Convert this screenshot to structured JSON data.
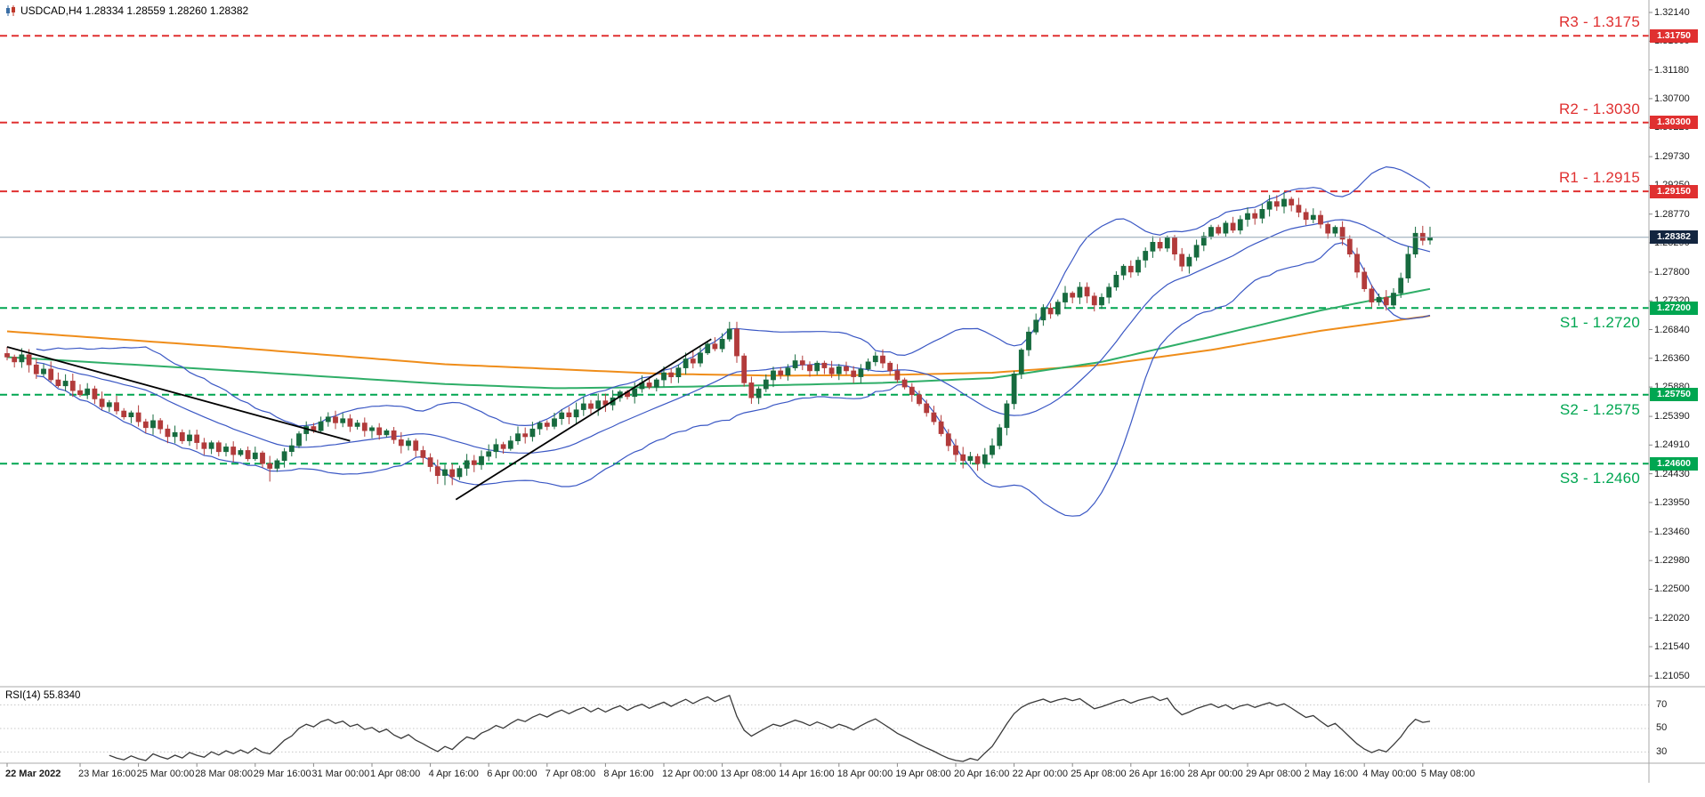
{
  "header": {
    "symbol_info": "USDCAD,H4 1.28334 1.28559 1.28260 1.28382"
  },
  "rsi_panel": {
    "label": "RSI(14) 55.8340",
    "level_labels": [
      "70",
      "50",
      "30"
    ]
  },
  "colors": {
    "background": "#ffffff",
    "resistance": "#e03030",
    "support": "#00a651",
    "current_price_line": "#90a4b4",
    "current_price_tag_bg": "#13253f",
    "up_candle": "#176b3f",
    "down_candle": "#b23b3b",
    "bollinger": "#3a57c4",
    "ma_orange": "#ef8d1a",
    "ma_green": "#2fae68",
    "trendline": "#000000",
    "rsi_line": "#3a3a3a",
    "separator": "#a8a8a8",
    "axis_text": "#1b1b1b"
  },
  "chart_data": {
    "type": "candlestick",
    "symbol": "USDCAD",
    "timeframe": "H4",
    "ohlc": {
      "open": 1.28334,
      "high": 1.28559,
      "low": 1.2826,
      "close": 1.28382
    },
    "price_axis": {
      "max": 1.3214,
      "min": 1.2105,
      "labels": [
        "1.32140",
        "1.31660",
        "1.31180",
        "1.30700",
        "1.30220",
        "1.29730",
        "1.29250",
        "1.28770",
        "1.28290",
        "1.27800",
        "1.27320",
        "1.26840",
        "1.26360",
        "1.25880",
        "1.25390",
        "1.24910",
        "1.24430",
        "1.23950",
        "1.23460",
        "1.22980",
        "1.22500",
        "1.22020",
        "1.21540",
        "1.21050"
      ]
    },
    "time_axis": {
      "labels": [
        "22 Mar 2022",
        "23 Mar 16:00",
        "25 Mar 00:00",
        "28 Mar 08:00",
        "29 Mar 16:00",
        "31 Mar 00:00",
        "1 Apr 08:00",
        "4 Apr 16:00",
        "6 Apr 00:00",
        "7 Apr 08:00",
        "8 Apr 16:00",
        "12 Apr 00:00",
        "13 Apr 08:00",
        "14 Apr 16:00",
        "18 Apr 00:00",
        "19 Apr 08:00",
        "20 Apr 16:00",
        "22 Apr 00:00",
        "25 Apr 08:00",
        "26 Apr 16:00",
        "28 Apr 00:00",
        "29 Apr 08:00",
        "2 May 16:00",
        "4 May 00:00",
        "5 May 08:00"
      ],
      "bars": [
        0,
        10,
        18,
        26,
        34,
        42,
        50,
        58,
        66,
        74,
        82,
        90,
        98,
        106,
        114,
        122,
        130,
        138,
        146,
        154,
        162,
        170,
        178,
        186,
        194
      ]
    },
    "sr_levels": [
      {
        "id": "R3",
        "text": "R3 - 1.3175",
        "price": 1.3175,
        "tag": "1.31750",
        "type": "resistance",
        "label_side": "above"
      },
      {
        "id": "R2",
        "text": "R2 - 1.3030",
        "price": 1.303,
        "tag": "1.30300",
        "type": "resistance",
        "label_side": "above"
      },
      {
        "id": "R1",
        "text": "R1 - 1.2915",
        "price": 1.2915,
        "tag": "1.29150",
        "type": "resistance",
        "label_side": "above"
      },
      {
        "id": "S1",
        "text": "S1 - 1.2720",
        "price": 1.272,
        "tag": "1.27200",
        "type": "support",
        "label_side": "below"
      },
      {
        "id": "S2",
        "text": "S2 - 1.2575",
        "price": 1.2575,
        "tag": "1.25750",
        "type": "support",
        "label_side": "below"
      },
      {
        "id": "S3",
        "text": "S3 - 1.2460",
        "price": 1.246,
        "tag": "1.24600",
        "type": "support",
        "label_side": "below"
      }
    ],
    "current_price": {
      "value": 1.28382,
      "tag": "1.28382"
    },
    "candles_closes": [
      1.2638,
      1.263,
      1.2642,
      1.2625,
      1.261,
      1.2618,
      1.26,
      1.259,
      1.2598,
      1.2582,
      1.2575,
      1.2585,
      1.2568,
      1.2555,
      1.2562,
      1.2548,
      1.2538,
      1.2545,
      1.253,
      1.252,
      1.2532,
      1.2518,
      1.2505,
      1.2512,
      1.2498,
      1.2508,
      1.2495,
      1.2485,
      1.2495,
      1.248,
      1.2488,
      1.2475,
      1.2482,
      1.2468,
      1.2478,
      1.246,
      1.2452,
      1.2465,
      1.248,
      1.249,
      1.251,
      1.2522,
      1.2515,
      1.253,
      1.2538,
      1.2528,
      1.2535,
      1.2522,
      1.2528,
      1.2515,
      1.252,
      1.2508,
      1.2515,
      1.25,
      1.249,
      1.2498,
      1.2482,
      1.247,
      1.2455,
      1.244,
      1.245,
      1.2438,
      1.2452,
      1.2465,
      1.2458,
      1.2472,
      1.248,
      1.2492,
      1.2485,
      1.2498,
      1.251,
      1.2505,
      1.2518,
      1.2528,
      1.2522,
      1.2535,
      1.2545,
      1.2538,
      1.255,
      1.256,
      1.2552,
      1.2565,
      1.2558,
      1.257,
      1.258,
      1.2572,
      1.2585,
      1.2595,
      1.2588,
      1.26,
      1.2612,
      1.2605,
      1.262,
      1.2635,
      1.2628,
      1.2645,
      1.266,
      1.2652,
      1.2668,
      1.2685,
      1.264,
      1.2595,
      1.257,
      1.2585,
      1.26,
      1.2615,
      1.2608,
      1.262,
      1.2632,
      1.2625,
      1.2615,
      1.2628,
      1.262,
      1.261,
      1.2622,
      1.2615,
      1.2605,
      1.2618,
      1.263,
      1.264,
      1.2628,
      1.2615,
      1.26,
      1.2588,
      1.2575,
      1.256,
      1.2545,
      1.253,
      1.251,
      1.249,
      1.2475,
      1.2465,
      1.2472,
      1.246,
      1.2475,
      1.249,
      1.252,
      1.256,
      1.261,
      1.265,
      1.268,
      1.27,
      1.272,
      1.271,
      1.273,
      1.2745,
      1.2738,
      1.2755,
      1.274,
      1.2725,
      1.2738,
      1.2755,
      1.2775,
      1.279,
      1.278,
      1.28,
      1.2815,
      1.283,
      1.282,
      1.2838,
      1.281,
      1.279,
      1.2805,
      1.2825,
      1.284,
      1.2855,
      1.2845,
      1.2862,
      1.285,
      1.2868,
      1.2878,
      1.287,
      1.2885,
      1.2898,
      1.289,
      1.2902,
      1.2892,
      1.288,
      1.2868,
      1.2875,
      1.286,
      1.2845,
      1.2855,
      1.2835,
      1.281,
      1.278,
      1.2752,
      1.273,
      1.2738,
      1.2725,
      1.2745,
      1.277,
      1.281,
      1.2845,
      1.2833,
      1.28382
    ],
    "indicators": {
      "bollinger": {
        "period": 20,
        "deviation": 2
      },
      "ma_orange": {
        "points": [
          [
            0,
            1.2681
          ],
          [
            30,
            1.2655
          ],
          [
            60,
            1.2626
          ],
          [
            90,
            1.261
          ],
          [
            105,
            1.2607
          ],
          [
            120,
            1.2608
          ],
          [
            135,
            1.2612
          ],
          [
            150,
            1.2625
          ],
          [
            165,
            1.265
          ],
          [
            180,
            1.2682
          ],
          [
            195,
            1.2707
          ]
        ]
      },
      "ma_green": {
        "points": [
          [
            0,
            1.2638
          ],
          [
            30,
            1.2616
          ],
          [
            60,
            1.2593
          ],
          [
            75,
            1.2586
          ],
          [
            90,
            1.2588
          ],
          [
            105,
            1.2591
          ],
          [
            120,
            1.2595
          ],
          [
            135,
            1.2603
          ],
          [
            150,
            1.263
          ],
          [
            165,
            1.2672
          ],
          [
            180,
            1.2716
          ],
          [
            195,
            1.2752
          ]
        ]
      },
      "rsi": {
        "period": 14,
        "value": 55.834,
        "levels": [
          70,
          50,
          30
        ]
      }
    },
    "trendlines": [
      {
        "from": [
          0,
          1.2655
        ],
        "to": [
          47,
          1.2498
        ]
      },
      {
        "from": [
          61.5,
          1.24
        ],
        "to": [
          96.5,
          1.2668
        ]
      }
    ]
  }
}
